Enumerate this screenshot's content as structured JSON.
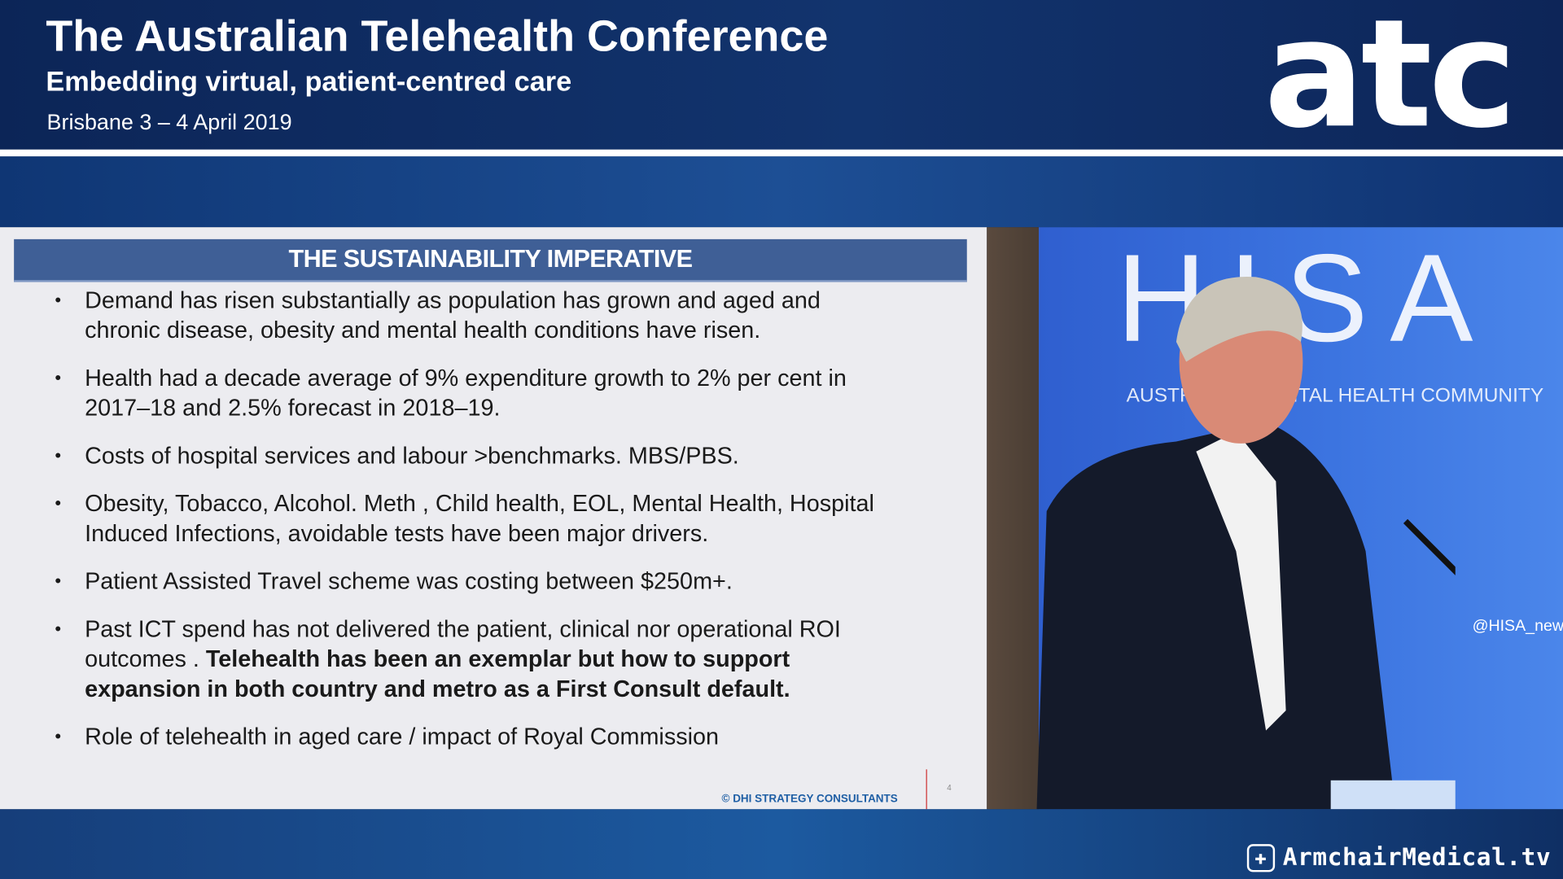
{
  "header": {
    "title": "The Australian Telehealth Conference",
    "subtitle": "Embedding virtual, patient-centred care",
    "event": "Brisbane 3 – 4 April 2019",
    "logo": "atc"
  },
  "slide": {
    "title": "THE SUSTAINABILITY IMPERATIVE",
    "bullets": [
      {
        "text": "Demand has risen substantially as population has grown and aged and chronic disease, obesity and mental health conditions have  risen.",
        "bold": ""
      },
      {
        "text": "Health had a decade average of 9% expenditure growth to 2% per cent in 2017–18 and 2.5% forecast in 2018–19.",
        "bold": ""
      },
      {
        "text": "Costs of hospital services and labour >benchmarks. MBS/PBS.",
        "bold": ""
      },
      {
        "text": "Obesity, Tobacco, Alcohol. Meth , Child health, EOL, Mental Health, Hospital Induced Infections, avoidable tests  have been major drivers.",
        "bold": ""
      },
      {
        "text": "Patient Assisted Travel scheme was costing between $250m+.",
        "bold": ""
      },
      {
        "text": "Past ICT spend has not delivered the patient, clinical nor operational ROI outcomes  . ",
        "bold": "Telehealth has been an exemplar but how to support expansion in  both country and metro as a First Consult default."
      },
      {
        "text": "Role of telehealth in aged care / impact of Royal Commission",
        "bold": ""
      }
    ],
    "credit": "©  DHI STRATEGY CONSULTANTS",
    "page_number": "4"
  },
  "video": {
    "banner_text": "HISA",
    "banner_subtitle": "AUSTRALIAN DIGITAL HEALTH COMMUNITY",
    "handle": "@HISA_news"
  },
  "footer": {
    "brand": "ArmchairMedical.tv",
    "brand_icon": "medical-cross-icon"
  }
}
